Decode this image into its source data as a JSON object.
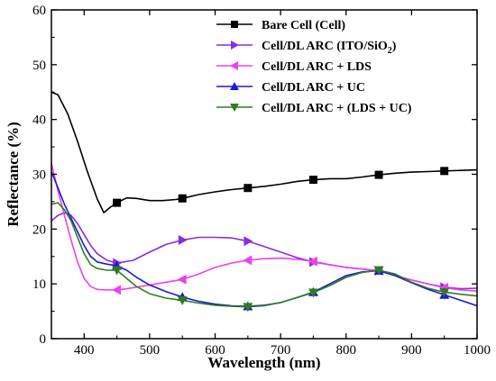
{
  "chart_data": {
    "type": "line",
    "title": "",
    "xlabel": "Wavelength (nm)",
    "ylabel": "Reflectance (%)",
    "xlim": [
      350,
      1000
    ],
    "ylim": [
      0,
      60
    ],
    "xticks": [
      400,
      500,
      600,
      700,
      800,
      900,
      1000
    ],
    "yticks": [
      0,
      10,
      20,
      30,
      40,
      50,
      60
    ],
    "grid": false,
    "legend_position": "top-right",
    "series": [
      {
        "name": "Bare Cell (Cell)",
        "legend_parts": {
          "main": "Bare Cell (Cell)"
        },
        "color": "#000000",
        "marker": "square",
        "x": [
          350,
          360,
          375,
          390,
          405,
          420,
          430,
          440,
          450,
          465,
          480,
          500,
          520,
          540,
          550,
          575,
          600,
          625,
          650,
          675,
          700,
          725,
          750,
          775,
          800,
          825,
          850,
          875,
          900,
          925,
          950,
          975,
          1000
        ],
        "y": [
          45,
          44.5,
          41,
          36,
          30.5,
          25.5,
          23,
          24,
          24.8,
          25.7,
          25.6,
          25.2,
          25.2,
          25.4,
          25.6,
          26.3,
          26.8,
          27.2,
          27.5,
          27.8,
          28.2,
          28.7,
          29.0,
          29.2,
          29.2,
          29.5,
          29.9,
          30.2,
          30.4,
          30.5,
          30.6,
          30.7,
          30.8
        ],
        "marker_x": [
          450,
          550,
          650,
          750,
          850,
          950
        ]
      },
      {
        "name": "Cell/DL ARC (ITO/SiO2)",
        "legend_parts": {
          "main": "Cell/DL ARC (ITO/SiO",
          "sub": "2",
          "tail": ")"
        },
        "color": "#8a2be2",
        "marker": "triangle-right",
        "x": [
          350,
          360,
          370,
          380,
          390,
          400,
          410,
          420,
          435,
          450,
          475,
          500,
          525,
          550,
          575,
          600,
          625,
          650,
          675,
          700,
          725,
          750,
          775,
          800,
          825,
          850,
          875,
          900,
          925,
          950,
          975,
          1000
        ],
        "y": [
          21.5,
          22.5,
          23,
          22.5,
          21,
          19,
          17,
          15.5,
          14.3,
          13.8,
          14.3,
          15.8,
          17.2,
          18.0,
          18.5,
          18.5,
          18.4,
          17.8,
          16.8,
          15.8,
          14.8,
          14.0,
          13.5,
          13.0,
          12.7,
          12.4,
          11.5,
          10.7,
          10.0,
          9.4,
          9.1,
          9.2
        ],
        "marker_x": [
          450,
          550,
          650,
          750,
          850,
          950
        ]
      },
      {
        "name": "Cell/DL ARC + LDS",
        "legend_parts": {
          "main": "Cell/DL ARC + LDS"
        },
        "color": "#ee40ee",
        "marker": "triangle-left",
        "x": [
          350,
          360,
          370,
          380,
          390,
          400,
          410,
          420,
          435,
          450,
          465,
          480,
          500,
          525,
          550,
          575,
          600,
          625,
          650,
          675,
          700,
          725,
          750,
          775,
          800,
          825,
          850,
          875,
          900,
          925,
          950,
          975,
          1000
        ],
        "y": [
          32,
          27,
          22.5,
          18,
          14,
          11,
          9.5,
          9.0,
          8.9,
          8.9,
          9.1,
          9.4,
          9.8,
          10.3,
          10.8,
          11.8,
          13.0,
          13.8,
          14.3,
          14.6,
          14.7,
          14.5,
          14.1,
          13.5,
          13.0,
          12.7,
          12.4,
          11.5,
          10.7,
          10.0,
          9.3,
          8.9,
          8.7
        ],
        "marker_x": [
          450,
          550,
          650,
          750,
          850,
          950
        ]
      },
      {
        "name": "Cell/DL ARC + UC",
        "legend_parts": {
          "main": "Cell/DL ARC + UC"
        },
        "color": "#1a1ad6",
        "marker": "triangle-up",
        "x": [
          350,
          360,
          370,
          380,
          390,
          400,
          410,
          420,
          435,
          450,
          465,
          480,
          500,
          525,
          550,
          575,
          600,
          625,
          650,
          675,
          700,
          725,
          750,
          775,
          800,
          825,
          850,
          875,
          900,
          925,
          950,
          975,
          1000
        ],
        "y": [
          30.5,
          27.5,
          24.5,
          22,
          19.5,
          17,
          15,
          14,
          13.6,
          13.3,
          12.5,
          11.2,
          9.8,
          8.6,
          7.6,
          6.8,
          6.3,
          6.0,
          5.9,
          6.1,
          6.6,
          7.5,
          8.5,
          10.0,
          11.5,
          12.2,
          12.4,
          11.5,
          10.2,
          9.0,
          8.0,
          7.0,
          6.0
        ],
        "marker_x": [
          450,
          550,
          650,
          750,
          850,
          950
        ]
      },
      {
        "name": "Cell/DL ARC + (LDS + UC)",
        "legend_parts": {
          "main": "Cell/DL ARC + (LDS + UC)"
        },
        "color": "#2e7d1f",
        "marker": "triangle-down",
        "x": [
          350,
          360,
          370,
          380,
          390,
          400,
          410,
          420,
          435,
          450,
          465,
          480,
          500,
          525,
          550,
          575,
          600,
          625,
          650,
          675,
          700,
          725,
          750,
          775,
          800,
          825,
          850,
          875,
          900,
          925,
          950,
          975,
          1000
        ],
        "y": [
          24.5,
          24.8,
          23.5,
          21.5,
          18.5,
          15.5,
          13.5,
          12.8,
          12.5,
          12.5,
          11.0,
          9.5,
          8.2,
          7.4,
          7.0,
          6.5,
          6.1,
          5.9,
          5.8,
          6.0,
          6.6,
          7.5,
          8.4,
          9.7,
          11.2,
          12.1,
          12.5,
          11.8,
          10.3,
          9.2,
          8.5,
          8.1,
          7.8
        ],
        "marker_x": [
          450,
          550,
          650,
          750,
          850,
          950
        ]
      }
    ]
  }
}
